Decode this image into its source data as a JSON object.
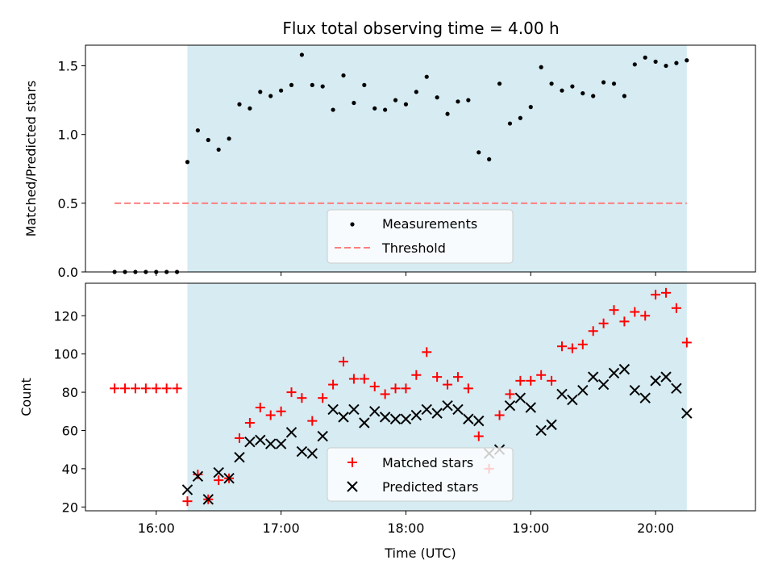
{
  "colors": {
    "shade": "#add8e6",
    "measurement": "#000000",
    "threshold": "#ff7f7f",
    "matched": "#ff0000",
    "predicted": "#000000"
  },
  "chart_data": [
    {
      "type": "scatter",
      "title": "Flux total observing time = 4.00 h",
      "xlabel": "",
      "ylabel": "Matched/Predicted stars",
      "xlim": [
        "15:26",
        "20:48"
      ],
      "ylim": [
        0,
        1.65
      ],
      "yticks": [
        0.0,
        0.5,
        1.0,
        1.5
      ],
      "ytick_labels": [
        "0.0",
        "0.5",
        "1.0",
        "1.5"
      ],
      "shaded_region": {
        "x0": "16:15",
        "x1": "20:15"
      },
      "legend": {
        "placement": "lower-center",
        "entries": [
          "Measurements",
          "Threshold"
        ]
      },
      "threshold": {
        "name": "Threshold",
        "value": 0.5,
        "x0": "15:40",
        "x1": "20:15"
      },
      "series": [
        {
          "name": "Measurements",
          "marker": "dot",
          "x": [
            "15:40",
            "15:45",
            "15:50",
            "15:55",
            "16:00",
            "16:05",
            "16:10",
            "16:15",
            "16:20",
            "16:25",
            "16:30",
            "16:35",
            "16:40",
            "16:45",
            "16:50",
            "16:55",
            "17:00",
            "17:05",
            "17:10",
            "17:15",
            "17:20",
            "17:25",
            "17:30",
            "17:35",
            "17:40",
            "17:45",
            "17:50",
            "17:55",
            "18:00",
            "18:05",
            "18:10",
            "18:15",
            "18:20",
            "18:25",
            "18:30",
            "18:35",
            "18:40",
            "18:45",
            "18:50",
            "18:55",
            "19:00",
            "19:05",
            "19:10",
            "19:15",
            "19:20",
            "19:25",
            "19:30",
            "19:35",
            "19:40",
            "19:45",
            "19:50",
            "19:55",
            "20:00",
            "20:05",
            "20:10",
            "20:15"
          ],
          "values": [
            0,
            0,
            0,
            0,
            0,
            0,
            0,
            0.8,
            1.03,
            0.96,
            0.89,
            0.97,
            1.22,
            1.19,
            1.31,
            1.28,
            1.32,
            1.36,
            1.58,
            1.36,
            1.35,
            1.18,
            1.43,
            1.23,
            1.36,
            1.19,
            1.18,
            1.25,
            1.22,
            1.31,
            1.42,
            1.27,
            1.15,
            1.24,
            1.25,
            0.87,
            0.82,
            1.37,
            1.08,
            1.12,
            1.2,
            1.49,
            1.37,
            1.32,
            1.35,
            1.3,
            1.28,
            1.38,
            1.37,
            1.28,
            1.51,
            1.56,
            1.53,
            1.5,
            1.52,
            1.54
          ]
        }
      ]
    },
    {
      "type": "scatter",
      "title": "",
      "xlabel": "Time (UTC)",
      "ylabel": "Count",
      "xlim": [
        "15:26",
        "20:48"
      ],
      "ylim": [
        18,
        137
      ],
      "yticks": [
        20,
        40,
        60,
        80,
        100,
        120
      ],
      "ytick_labels": [
        "20",
        "40",
        "60",
        "80",
        "100",
        "120"
      ],
      "xticks": [
        "16:00",
        "17:00",
        "18:00",
        "19:00",
        "20:00"
      ],
      "xtick_labels": [
        "16:00",
        "17:00",
        "18:00",
        "19:00",
        "20:00"
      ],
      "shaded_region": {
        "x0": "16:15",
        "x1": "20:15"
      },
      "legend": {
        "placement": "lower-center",
        "entries": [
          "Matched stars",
          "Predicted stars"
        ]
      },
      "series": [
        {
          "name": "Matched stars",
          "marker": "plus",
          "x": [
            "15:40",
            "15:45",
            "15:50",
            "15:55",
            "16:00",
            "16:05",
            "16:10",
            "16:15",
            "16:20",
            "16:25",
            "16:30",
            "16:35",
            "16:40",
            "16:45",
            "16:50",
            "16:55",
            "17:00",
            "17:05",
            "17:10",
            "17:15",
            "17:20",
            "17:25",
            "17:30",
            "17:35",
            "17:40",
            "17:45",
            "17:50",
            "17:55",
            "18:00",
            "18:05",
            "18:10",
            "18:15",
            "18:20",
            "18:25",
            "18:30",
            "18:35",
            "18:40",
            "18:45",
            "18:50",
            "18:55",
            "19:00",
            "19:05",
            "19:10",
            "19:15",
            "19:20",
            "19:25",
            "19:30",
            "19:35",
            "19:40",
            "19:45",
            "19:50",
            "19:55",
            "20:00",
            "20:05",
            "20:10",
            "20:15"
          ],
          "values": [
            82,
            82,
            82,
            82,
            82,
            82,
            82,
            23,
            37,
            24,
            34,
            35,
            56,
            64,
            72,
            68,
            70,
            80,
            77,
            65,
            77,
            84,
            96,
            87,
            87,
            83,
            79,
            82,
            82,
            89,
            101,
            88,
            84,
            88,
            82,
            57,
            40,
            68,
            79,
            86,
            86,
            89,
            86,
            104,
            103,
            105,
            112,
            116,
            123,
            117,
            122,
            120,
            131,
            132,
            124,
            106
          ]
        },
        {
          "name": "Predicted stars",
          "marker": "x",
          "x": [
            "16:15",
            "16:20",
            "16:25",
            "16:30",
            "16:35",
            "16:40",
            "16:45",
            "16:50",
            "16:55",
            "17:00",
            "17:05",
            "17:10",
            "17:15",
            "17:20",
            "17:25",
            "17:30",
            "17:35",
            "17:40",
            "17:45",
            "17:50",
            "17:55",
            "18:00",
            "18:05",
            "18:10",
            "18:15",
            "18:20",
            "18:25",
            "18:30",
            "18:35",
            "18:40",
            "18:45",
            "18:50",
            "18:55",
            "19:00",
            "19:05",
            "19:10",
            "19:15",
            "19:20",
            "19:25",
            "19:30",
            "19:35",
            "19:40",
            "19:45",
            "19:50",
            "19:55",
            "20:00",
            "20:05",
            "20:10",
            "20:15"
          ],
          "values": [
            29,
            36,
            24,
            38,
            35,
            46,
            54,
            55,
            53,
            53,
            59,
            49,
            48,
            57,
            71,
            67,
            71,
            64,
            70,
            67,
            66,
            66,
            68,
            71,
            69,
            73,
            71,
            66,
            65,
            48,
            50,
            73,
            77,
            72,
            60,
            63,
            79,
            76,
            81,
            88,
            84,
            90,
            92,
            81,
            77,
            86,
            88,
            82,
            69
          ]
        }
      ]
    }
  ]
}
